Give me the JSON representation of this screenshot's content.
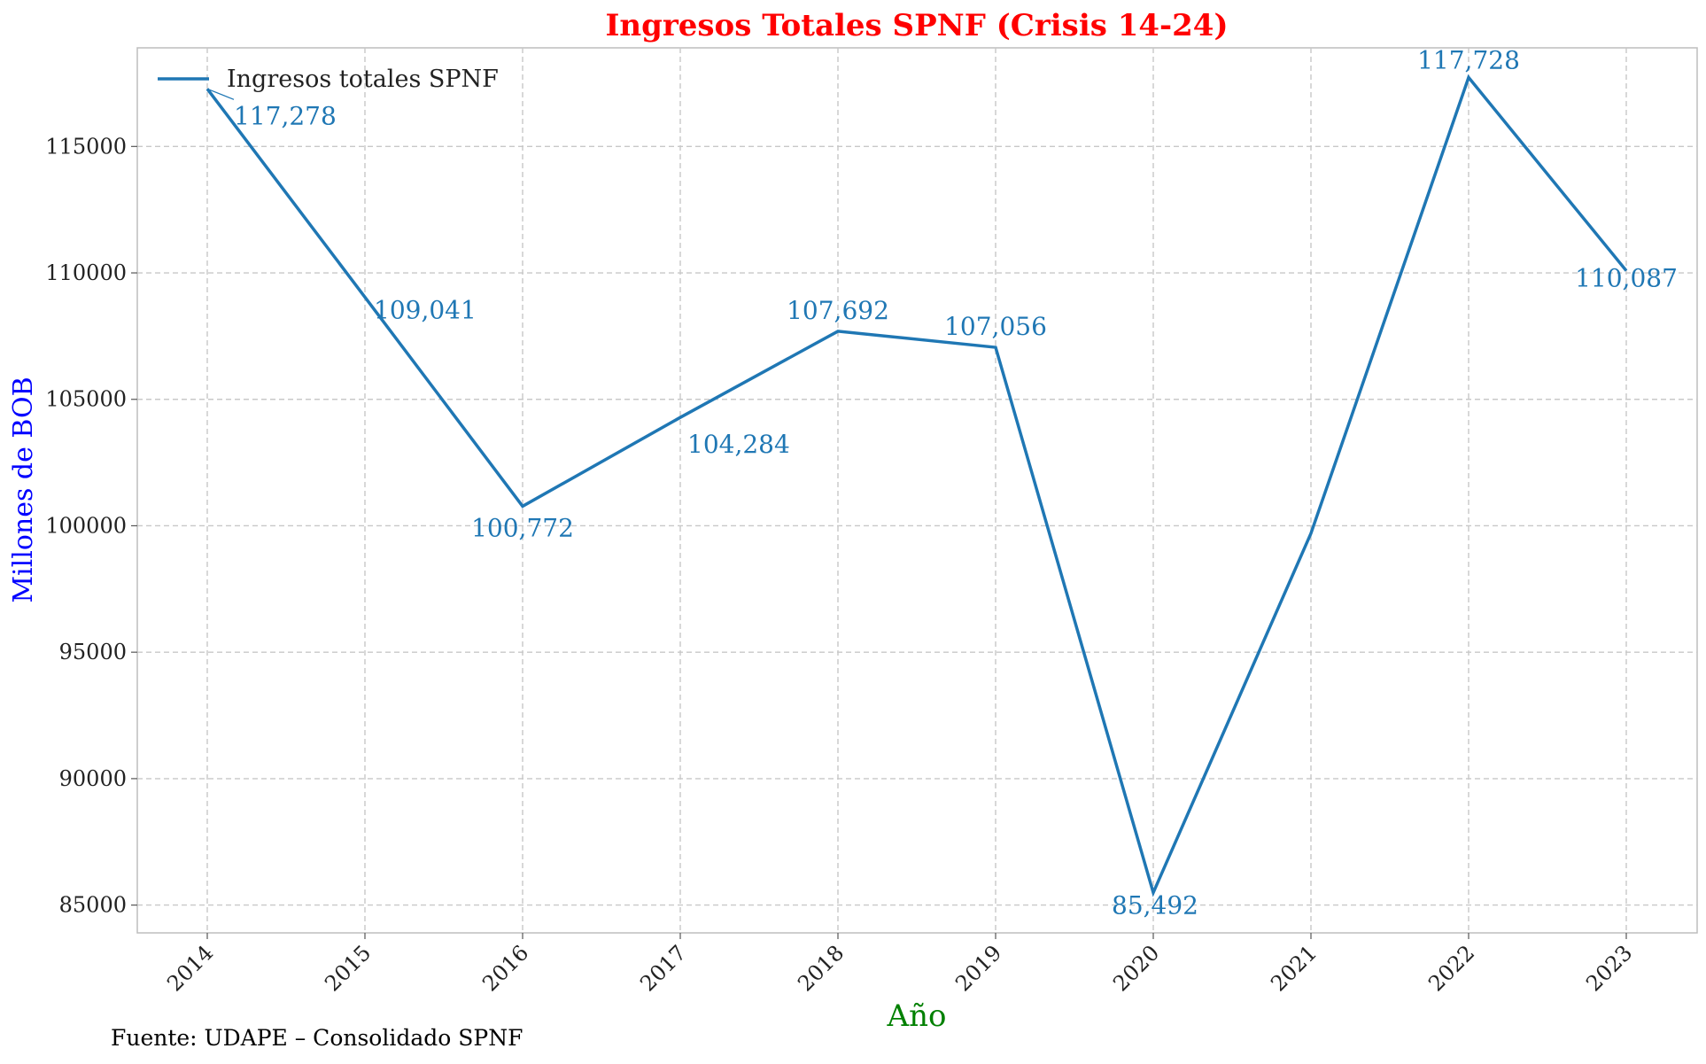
{
  "chart_data": {
    "type": "line",
    "title": "Ingresos Totales SPNF (Crisis 14-24)",
    "xlabel": "Año",
    "ylabel": "Millones de BOB",
    "source_note": "Fuente: UDAPE – Consolidado SPNF",
    "categories": [
      "2014",
      "2015",
      "2016",
      "2017",
      "2018",
      "2019",
      "2020",
      "2021",
      "2022",
      "2023"
    ],
    "series": [
      {
        "name": "Ingresos totales SPNF",
        "values": [
          117278,
          109041,
          100772,
          104284,
          107692,
          107056,
          85492,
          99700,
          117728,
          110087
        ],
        "labels": [
          "117,278",
          "109,041",
          "100,772",
          "104,284",
          "107,692",
          "107,056",
          "85,492",
          "",
          "117,728",
          "110,087"
        ],
        "color": "#1f77b4"
      }
    ],
    "ylim": [
      83900,
      118900
    ],
    "yticks": [
      85000,
      90000,
      95000,
      100000,
      105000,
      110000,
      115000
    ],
    "grid": true,
    "legend_position": "top-left",
    "colors": {
      "title": "#ff0000",
      "xlabel": "#008000",
      "ylabel": "#0000ff",
      "line": "#1f77b4"
    }
  }
}
